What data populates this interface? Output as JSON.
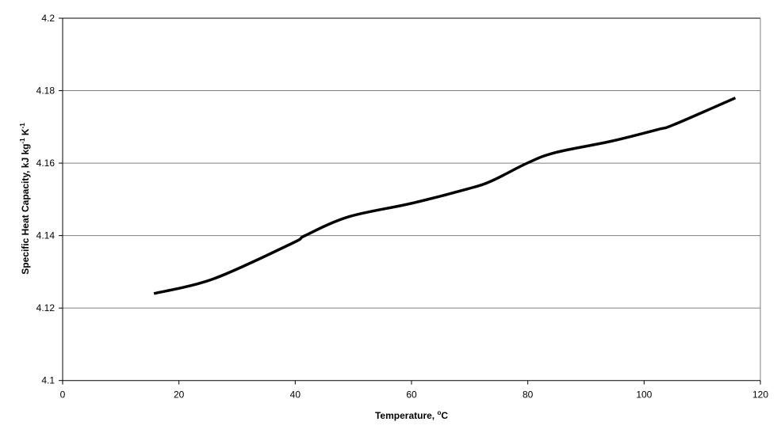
{
  "chart_data": {
    "type": "line",
    "title": "",
    "xlabel": "Temperature, ",
    "xlabel_sup": "o",
    "xlabel_unit": "C",
    "ylabel": "Specific Heat Capacity, kJ kg",
    "ylabel_sup1": "-1",
    "ylabel_mid": " K",
    "ylabel_sup2": "-1",
    "xlim": [
      0,
      120
    ],
    "ylim": [
      4.1,
      4.2
    ],
    "xticks": [
      "0",
      "20",
      "40",
      "60",
      "80",
      "100",
      "120"
    ],
    "yticks": [
      "4.1",
      "4.12",
      "4.14",
      "4.16",
      "4.18",
      "4.2"
    ],
    "grid": "horizontal",
    "legend": "none",
    "series": [
      {
        "name": "Specific heat capacity",
        "color": "#000000",
        "x": [
          15.7,
          26.0,
          39.5,
          41.7,
          49.2,
          60.0,
          69.7,
          73.8,
          79.9,
          84.7,
          94.2,
          102.4,
          105.1,
          115.7
        ],
        "y": [
          4.124,
          4.1281,
          4.1379,
          4.14,
          4.1452,
          4.1489,
          4.1529,
          4.1551,
          4.16,
          4.1629,
          4.166,
          4.1693,
          4.1706,
          4.178
        ]
      }
    ]
  }
}
